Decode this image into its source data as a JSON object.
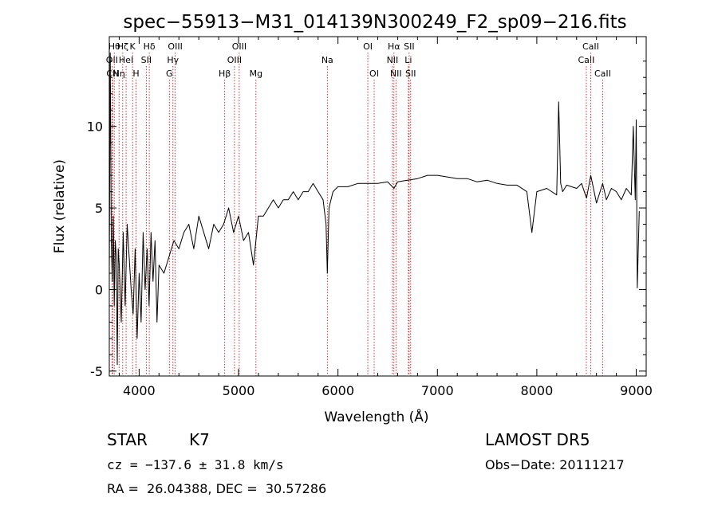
{
  "title": "spec−55913−M31_014139N300249_F2_sp09−216.fits",
  "info": {
    "class_label": "STAR",
    "subclass": "K7",
    "survey": "LAMOST DR5",
    "cz": "cz = −137.6 ± 31.8 km/s",
    "obs_date": "Obs−Date: 20111217",
    "coords": "RA =  26.04388, DEC =  30.57286"
  },
  "chart_data": {
    "type": "line",
    "title": "spec−55913−M31_014139N300249_F2_sp09−216.fits",
    "xlabel": "Wavelength (Å)",
    "ylabel": "Flux (relative)",
    "xlim": [
      3700,
      9100
    ],
    "ylim": [
      -5.3,
      15.5
    ],
    "x_ticks": [
      4000,
      5000,
      6000,
      7000,
      8000,
      9000
    ],
    "y_ticks": [
      -5,
      0,
      5,
      10
    ],
    "line_color": "#000000",
    "marker_color": "#cc0000",
    "spectral_lines": [
      {
        "wave": 3727,
        "label": "OII",
        "row": 1
      },
      {
        "wave": 3734,
        "label": "CN",
        "row": 2
      },
      {
        "wave": 3750,
        "label": "Hθ",
        "row": 0
      },
      {
        "wave": 3798,
        "label": "Hη",
        "row": 2
      },
      {
        "wave": 3835,
        "label": "Hζ",
        "row": 0
      },
      {
        "wave": 3869,
        "label": "HeI",
        "row": 1
      },
      {
        "wave": 3934,
        "label": "K",
        "row": 0
      },
      {
        "wave": 3969,
        "label": "H",
        "row": 2
      },
      {
        "wave": 4072,
        "label": "SII",
        "row": 1
      },
      {
        "wave": 4102,
        "label": "Hδ",
        "row": 0
      },
      {
        "wave": 4304,
        "label": "G",
        "row": 2
      },
      {
        "wave": 4340,
        "label": "Hγ",
        "row": 1
      },
      {
        "wave": 4363,
        "label": "OIII",
        "row": 0
      },
      {
        "wave": 4861,
        "label": "Hβ",
        "row": 2
      },
      {
        "wave": 4959,
        "label": "OIII",
        "row": 1
      },
      {
        "wave": 5007,
        "label": "OIII",
        "row": 0
      },
      {
        "wave": 5175,
        "label": "Mg",
        "row": 2
      },
      {
        "wave": 5893,
        "label": "Na",
        "row": 1
      },
      {
        "wave": 6300,
        "label": "OI",
        "row": 0
      },
      {
        "wave": 6364,
        "label": "OI",
        "row": 2
      },
      {
        "wave": 6548,
        "label": "NII",
        "row": 1
      },
      {
        "wave": 6563,
        "label": "Hα",
        "row": 0
      },
      {
        "wave": 6583,
        "label": "NII",
        "row": 2
      },
      {
        "wave": 6708,
        "label": "Li",
        "row": 1
      },
      {
        "wave": 6716,
        "label": "SII",
        "row": 0
      },
      {
        "wave": 6731,
        "label": "SII",
        "row": 2
      },
      {
        "wave": 8498,
        "label": "CaII",
        "row": 1
      },
      {
        "wave": 8542,
        "label": "CaII",
        "row": 0
      },
      {
        "wave": 8662,
        "label": "CaII",
        "row": 2
      }
    ],
    "series": [
      {
        "x": [
          3700,
          3710,
          3720,
          3730,
          3740,
          3750,
          3760,
          3770,
          3780,
          3790,
          3800,
          3820,
          3840,
          3860,
          3880,
          3900,
          3920,
          3940,
          3960,
          3980,
          4000,
          4020,
          4040,
          4060,
          4080,
          4100,
          4120,
          4140,
          4160,
          4180,
          4200,
          4250,
          4300,
          4350,
          4400,
          4450,
          4500,
          4550,
          4600,
          4650,
          4700,
          4750,
          4800,
          4850,
          4900,
          4950,
          5000,
          5050,
          5100,
          5150,
          5200,
          5250,
          5300,
          5350,
          5400,
          5450,
          5500,
          5550,
          5600,
          5650,
          5700,
          5750,
          5800,
          5850,
          5880,
          5893,
          5910,
          5950,
          6000,
          6100,
          6200,
          6300,
          6400,
          6500,
          6563,
          6600,
          6700,
          6800,
          6900,
          7000,
          7100,
          7200,
          7300,
          7400,
          7500,
          7600,
          7700,
          7800,
          7900,
          7950,
          8000,
          8100,
          8200,
          8220,
          8240,
          8260,
          8300,
          8400,
          8450,
          8500,
          8542,
          8600,
          8662,
          8700,
          8750,
          8800,
          8850,
          8900,
          8950,
          8970,
          8990,
          9000,
          9010,
          9030
        ],
        "y": [
          1,
          14.5,
          3,
          0.5,
          4.5,
          -1,
          3,
          2,
          -4.6,
          2.5,
          1.5,
          -2,
          3.5,
          -1,
          4,
          2,
          0,
          -1.5,
          2.5,
          -3,
          1,
          -2,
          3.5,
          0,
          2.5,
          -1,
          3.5,
          0.5,
          3,
          -2,
          1.5,
          1,
          2,
          3,
          2.5,
          3.5,
          4,
          2.5,
          4.5,
          3.5,
          2.5,
          4,
          3.5,
          4,
          5,
          3.5,
          4.5,
          3,
          3.5,
          1.5,
          4.5,
          4.5,
          5,
          5.5,
          5,
          5.5,
          5.5,
          6,
          5.5,
          6,
          6,
          6.5,
          6,
          5.5,
          4,
          1,
          5,
          6,
          6.3,
          6.3,
          6.5,
          6.5,
          6.5,
          6.6,
          6.2,
          6.6,
          6.7,
          6.8,
          7,
          7,
          6.9,
          6.8,
          6.8,
          6.6,
          6.7,
          6.5,
          6.4,
          6.4,
          6,
          3.5,
          6,
          6.2,
          5.8,
          11.5,
          6.5,
          6,
          6.4,
          6.2,
          6.5,
          5.6,
          7,
          5.3,
          6.5,
          5.5,
          6.2,
          6,
          5.5,
          6.2,
          5.8,
          10,
          5.5,
          10.4,
          0.1,
          4.8
        ]
      }
    ]
  }
}
